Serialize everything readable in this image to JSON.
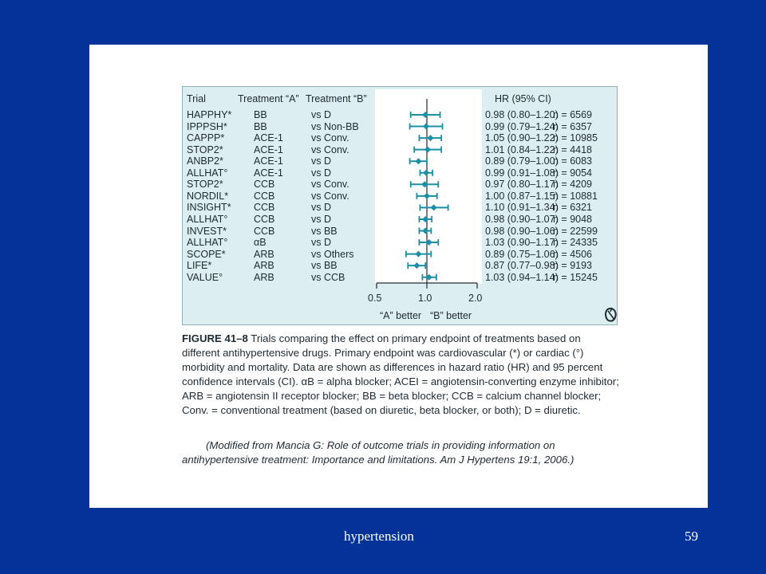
{
  "slide": {
    "footer_title": "hypertension",
    "page_number": "59",
    "colors": {
      "background": "#033399",
      "panel": "#ffffff",
      "figure_bg": "#dceef0",
      "marker": "#1a8fa6",
      "text": "#1e2a33"
    }
  },
  "table": {
    "headers": {
      "trial": "Trial",
      "treatment_a": "Treatment “A”",
      "treatment_b": "Treatment “B”",
      "hr": "HR (95% CI)"
    },
    "rows": [
      {
        "trial": "HAPPHY*",
        "a": "BB",
        "b": "vs D",
        "hr": "0.98 (0.80–1.20)",
        "n": "n =   6569"
      },
      {
        "trial": "IPPPSH*",
        "a": "BB",
        "b": "vs Non-BB",
        "hr": "0.99 (0.79–1.24)",
        "n": "n =   6357"
      },
      {
        "trial": "CAPPP*",
        "a": "ACE-1",
        "b": "vs Conv.",
        "hr": "1.05 (0.90–1.22)",
        "n": "n = 10985"
      },
      {
        "trial": "STOP2*",
        "a": "ACE-1",
        "b": "vs Conv.",
        "hr": "1.01 (0.84–1.22)",
        "n": "n =   4418"
      },
      {
        "trial": "ANBP2*",
        "a": "ACE-1",
        "b": "vs D",
        "hr": "0.89 (0.79–1.00)",
        "n": "n =   6083"
      },
      {
        "trial": "ALLHAT°",
        "a": "ACE-1",
        "b": "vs D",
        "hr": "0.99 (0.91–1.08)",
        "n": "n =   9054"
      },
      {
        "trial": "STOP2*",
        "a": "CCB",
        "b": "vs Conv.",
        "hr": "0.97 (0.80–1.17)",
        "n": "n =   4209"
      },
      {
        "trial": "NORDIL*",
        "a": "CCB",
        "b": "vs Conv.",
        "hr": "1.00 (0.87–1.15)",
        "n": "n = 10881"
      },
      {
        "trial": "INSIGHT*",
        "a": "CCB",
        "b": "vs D",
        "hr": "1.10 (0.91–1.34)",
        "n": "n =   6321"
      },
      {
        "trial": "ALLHAT°",
        "a": "CCB",
        "b": "vs D",
        "hr": "0.98 (0.90–1.07)",
        "n": "n =   9048"
      },
      {
        "trial": "INVEST*",
        "a": "CCB",
        "b": "vs BB",
        "hr": "0.98 (0.90–1.06)",
        "n": "n = 22599"
      },
      {
        "trial": "ALLHAT°",
        "a": "αB",
        "b": "vs D",
        "hr": "1.03 (0.90–1.17)",
        "n": "n = 24335"
      },
      {
        "trial": "SCOPE*",
        "a": "ARB",
        "b": "vs Others",
        "hr": "0.89 (0.75–1.06)",
        "n": "n =   4506"
      },
      {
        "trial": "LIFE*",
        "a": "ARB",
        "b": "vs BB",
        "hr": "0.87 (0.77–0.98)",
        "n": "n =   9193"
      },
      {
        "trial": "VALUE°",
        "a": "ARB",
        "b": "vs CCB",
        "hr": "1.03 (0.94–1.14)",
        "n": "n = 15245"
      }
    ]
  },
  "chart_data": {
    "type": "forest",
    "x_scale": "log",
    "x_ticks": [
      0.5,
      1.0,
      2.0
    ],
    "x_tick_labels": [
      "0.5",
      "1.0",
      "2.0"
    ],
    "xlim": [
      0.5,
      2.0
    ],
    "reference_line": 1.0,
    "x_annotation_left": "“A” better",
    "x_annotation_right": "“B” better",
    "categories": [
      "HAPPHY*",
      "IPPPSH*",
      "CAPPP*",
      "STOP2*",
      "ANBP2*",
      "ALLHAT°",
      "STOP2*",
      "NORDIL*",
      "INSIGHT*",
      "ALLHAT°",
      "INVEST*",
      "ALLHAT°",
      "SCOPE*",
      "LIFE*",
      "VALUE°"
    ],
    "hr": [
      0.98,
      0.99,
      1.05,
      1.01,
      0.89,
      0.99,
      0.97,
      1.0,
      1.1,
      0.98,
      0.98,
      1.03,
      0.89,
      0.87,
      1.03
    ],
    "lower": [
      0.8,
      0.79,
      0.9,
      0.84,
      0.79,
      0.91,
      0.8,
      0.87,
      0.91,
      0.9,
      0.9,
      0.9,
      0.75,
      0.77,
      0.94
    ],
    "upper": [
      1.2,
      1.24,
      1.22,
      1.22,
      1.0,
      1.08,
      1.17,
      1.15,
      1.34,
      1.07,
      1.06,
      1.17,
      1.06,
      0.98,
      1.14
    ],
    "n": [
      6569,
      6357,
      10985,
      4418,
      6083,
      9054,
      4209,
      10881,
      6321,
      9048,
      22599,
      24335,
      4506,
      9193,
      15245
    ],
    "marker_color": "#1a8fa6"
  },
  "caption": {
    "figure_label": "FIGURE 41–8",
    "text": " Trials comparing the effect on primary endpoint of treatments based on different antihypertensive drugs. Primary endpoint was cardiovascular (*) or cardiac (°) morbidity and mortality. Data are shown as differences in hazard ratio (HR) and 95 percent confidence intervals (CI). αB = alpha blocker; ACEI = angiotensin-converting enzyme inhibitor; ARB = angiotensin II receptor blocker; BB = beta blocker; CCB = calcium channel blocker; Conv. = conventional treatment (based on diuretic, beta blocker, or both); D = diuretic.",
    "source_line1": "(Modified from Mancia G: Role of outcome trials in providing information on",
    "source_line2": "antihypertensive treatment: Importance and limitations. Am J Hypertens 19:1, 2006.)"
  }
}
